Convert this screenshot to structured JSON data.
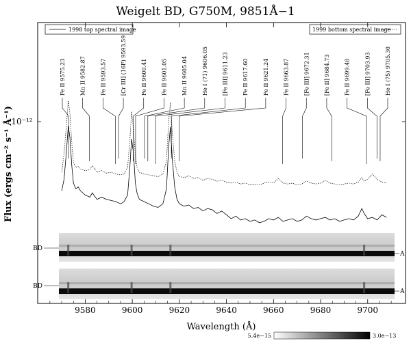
{
  "chart_data": {
    "type": "line",
    "title": "Weigelt BD, G750M, 9851Å−1",
    "xlabel": "Wavelength (Å)",
    "ylabel": "Flux (ergs cm⁻² s⁻¹ Å⁻¹)",
    "xlim": [
      9563,
      9712
    ],
    "x_ticks": [
      "9580",
      "9600",
      "9620",
      "9640",
      "9660",
      "9680",
      "9700"
    ],
    "y_ticks": [
      "10⁻¹²"
    ],
    "y_scale": "log",
    "grid": false,
    "legend": [
      {
        "label": "1998 top spectral image",
        "position": "top-left",
        "style": "solid"
      },
      {
        "label": "1999 bottom spectral image",
        "position": "top-right",
        "style": "dotted"
      }
    ],
    "series": [
      {
        "name": "1998 top spectral image",
        "style": "solid",
        "x": [
          9570,
          9571,
          9572,
          9572.8,
          9573.5,
          9574.3,
          9575,
          9576,
          9577,
          9578,
          9580,
          9582,
          9583,
          9585,
          9587,
          9589,
          9591,
          9593,
          9595,
          9596.5,
          9598,
          9599,
          9599.7,
          9600.5,
          9601.3,
          9602,
          9603,
          9605,
          9607,
          9609,
          9611,
          9613,
          9614.5,
          9615.5,
          9616.2,
          9617,
          9618,
          9619,
          9620,
          9622,
          9624,
          9626,
          9628,
          9630,
          9632,
          9634,
          9636,
          9638,
          9640,
          9642,
          9644,
          9646,
          9648,
          9650,
          9652,
          9654,
          9656,
          9658,
          9660,
          9662,
          9664,
          9666,
          9668,
          9670,
          9672,
          9674,
          9676,
          9678,
          9680,
          9682,
          9684,
          9686,
          9688,
          9690,
          9692,
          9694,
          9696,
          9697.5,
          9698.5,
          9700,
          9702,
          9704,
          9706,
          9708
        ],
        "y": [
          5.2e-13,
          5.8e-13,
          7.5e-13,
          9.6e-13,
          8.6e-13,
          6.6e-13,
          5.6e-13,
          5.3e-13,
          5.4e-13,
          5.2e-13,
          5e-13,
          4.9e-13,
          5.1e-13,
          4.8e-13,
          4.9e-13,
          4.8e-13,
          4.75e-13,
          4.7e-13,
          4.6e-13,
          4.7e-13,
          5e-13,
          6.6e-13,
          8.5e-13,
          7.4e-13,
          5.6e-13,
          5.1e-13,
          4.8e-13,
          4.7e-13,
          4.6e-13,
          4.5e-13,
          4.45e-13,
          4.6e-13,
          5.3e-13,
          8e-13,
          9.5e-13,
          7e-13,
          5.4e-13,
          4.8e-13,
          4.6e-13,
          4.5e-13,
          4.55e-13,
          4.4e-13,
          4.45e-13,
          4.3e-13,
          4.4e-13,
          4.35e-13,
          4.2e-13,
          4.3e-13,
          4.15e-13,
          4e-13,
          4.1e-13,
          3.95e-13,
          4e-13,
          3.9e-13,
          3.95e-13,
          3.85e-13,
          3.9e-13,
          4e-13,
          3.95e-13,
          4.05e-13,
          3.9e-13,
          3.95e-13,
          4e-13,
          3.9e-13,
          3.95e-13,
          4.1e-13,
          4e-13,
          3.95e-13,
          4e-13,
          4.05e-13,
          3.95e-13,
          4e-13,
          3.9e-13,
          3.95e-13,
          4e-13,
          3.95e-13,
          4.1e-13,
          4.4e-13,
          4.2e-13,
          4e-13,
          4.05e-13,
          3.95e-13,
          4.15e-13,
          4.05e-13
        ]
      },
      {
        "name": "1999 bottom spectral image",
        "style": "dotted",
        "x": [
          9570,
          9571,
          9572,
          9572.8,
          9573.5,
          9574.3,
          9575,
          9576,
          9577,
          9578,
          9580,
          9582,
          9583,
          9585,
          9587,
          9589,
          9591,
          9593,
          9595,
          9596.5,
          9598,
          9599,
          9599.7,
          9600.5,
          9601.3,
          9602,
          9603,
          9605,
          9607,
          9609,
          9611,
          9613,
          9614.5,
          9615.5,
          9616.2,
          9617,
          9618,
          9619,
          9620,
          9622,
          9624,
          9626,
          9628,
          9630,
          9632,
          9634,
          9636,
          9638,
          9640,
          9642,
          9644,
          9646,
          9648,
          9650,
          9652,
          9654,
          9656,
          9658,
          9660,
          9662,
          9664,
          9666,
          9668,
          9670,
          9672,
          9674,
          9676,
          9678,
          9680,
          9682,
          9684,
          9686,
          9688,
          9690,
          9692,
          9694,
          9696,
          9697.5,
          9698.5,
          9700,
          9702,
          9704,
          9706,
          9708
        ],
        "y": [
          6.2e-13,
          7.4e-13,
          9.6e-13,
          1.22e-12,
          1.08e-12,
          8.2e-13,
          6.8e-13,
          6.5e-13,
          6.55e-13,
          6.4e-13,
          6.3e-13,
          6.35e-13,
          6.6e-13,
          6.2e-13,
          6.3e-13,
          6.15e-13,
          6.2e-13,
          6.1e-13,
          6.05e-13,
          6.1e-13,
          6.5e-13,
          8.5e-13,
          1.1e-12,
          9.3e-13,
          7.2e-13,
          6.5e-13,
          6.2e-13,
          6.1e-13,
          6.05e-13,
          6e-13,
          5.95e-13,
          6.1e-13,
          6.9e-13,
          1.02e-12,
          1.2e-12,
          9e-13,
          6.9e-13,
          6.2e-13,
          5.95e-13,
          5.9e-13,
          6e-13,
          5.85e-13,
          5.9e-13,
          5.75e-13,
          5.85e-13,
          5.8e-13,
          5.7e-13,
          5.75e-13,
          5.65e-13,
          5.6e-13,
          5.65e-13,
          5.55e-13,
          5.6e-13,
          5.5e-13,
          5.55e-13,
          5.5e-13,
          5.6e-13,
          5.65e-13,
          5.6e-13,
          5.85e-13,
          5.6e-13,
          5.55e-13,
          5.6e-13,
          5.5e-13,
          5.55e-13,
          5.7e-13,
          5.6e-13,
          5.55e-13,
          5.6e-13,
          5.75e-13,
          5.6e-13,
          5.55e-13,
          5.5e-13,
          5.55e-13,
          5.6e-13,
          5.55e-13,
          5.65e-13,
          5.9e-13,
          5.7e-13,
          5.8e-13,
          6.1e-13,
          5.8e-13,
          5.65e-13,
          5.6e-13
        ]
      }
    ],
    "line_ids": [
      {
        "label": "Fe II 9575.23",
        "wave": 9575.23,
        "tip": 9573.0
      },
      {
        "label": "Mn II 9582.87",
        "wave": 9582.87,
        "tip": 9581.8
      },
      {
        "label": "Fe II 9593.57",
        "wave": 9593.57,
        "tip": 9592.8
      },
      {
        "label": "[Cr III] (16F) 9593.59",
        "wave": 9593.59,
        "tip": 9594.2
      },
      {
        "label": "Fe II 9600.41",
        "wave": 9600.41,
        "tip": 9600.4
      },
      {
        "label": "Fe II 9601.05",
        "wave": 9601.05,
        "tip": 9601.4
      },
      {
        "label": "Mn II 9605.04",
        "wave": 9605.04,
        "tip": 9605.2
      },
      {
        "label": "He I (71) 9606.05",
        "wave": 9606.05,
        "tip": 9606.6
      },
      {
        "label": "[Fe III] 9611.23",
        "wave": 9611.23,
        "tip": 9609.9
      },
      {
        "label": "Fe II 9617.60",
        "wave": 9617.6,
        "tip": 9616.6
      },
      {
        "label": "Fe II 9621.24",
        "wave": 9621.24,
        "tip": 9620.0
      },
      {
        "label": "Fe II 9663.87",
        "wave": 9663.87,
        "tip": 9663.87
      },
      {
        "label": "[Fe III] 9672.31",
        "wave": 9672.31,
        "tip": 9672.31
      },
      {
        "label": "[Fe II] 9684.73",
        "wave": 9684.73,
        "tip": 9684.73
      },
      {
        "label": "Fe II 9699.48",
        "wave": 9699.48,
        "tip": 9699.48
      },
      {
        "label": "[Fe III] 9703.93",
        "wave": 9703.93,
        "tip": 9703.93
      },
      {
        "label": "He I (75) 9705.30",
        "wave": 9705.3,
        "tip": 9705.3
      }
    ],
    "spectral_images": [
      {
        "left_label": "BD",
        "right_label": "A"
      },
      {
        "left_label": "BD",
        "right_label": "A"
      }
    ],
    "colorbar": {
      "min_label": "5.4e−15",
      "max_label": "3.0e−13"
    }
  }
}
